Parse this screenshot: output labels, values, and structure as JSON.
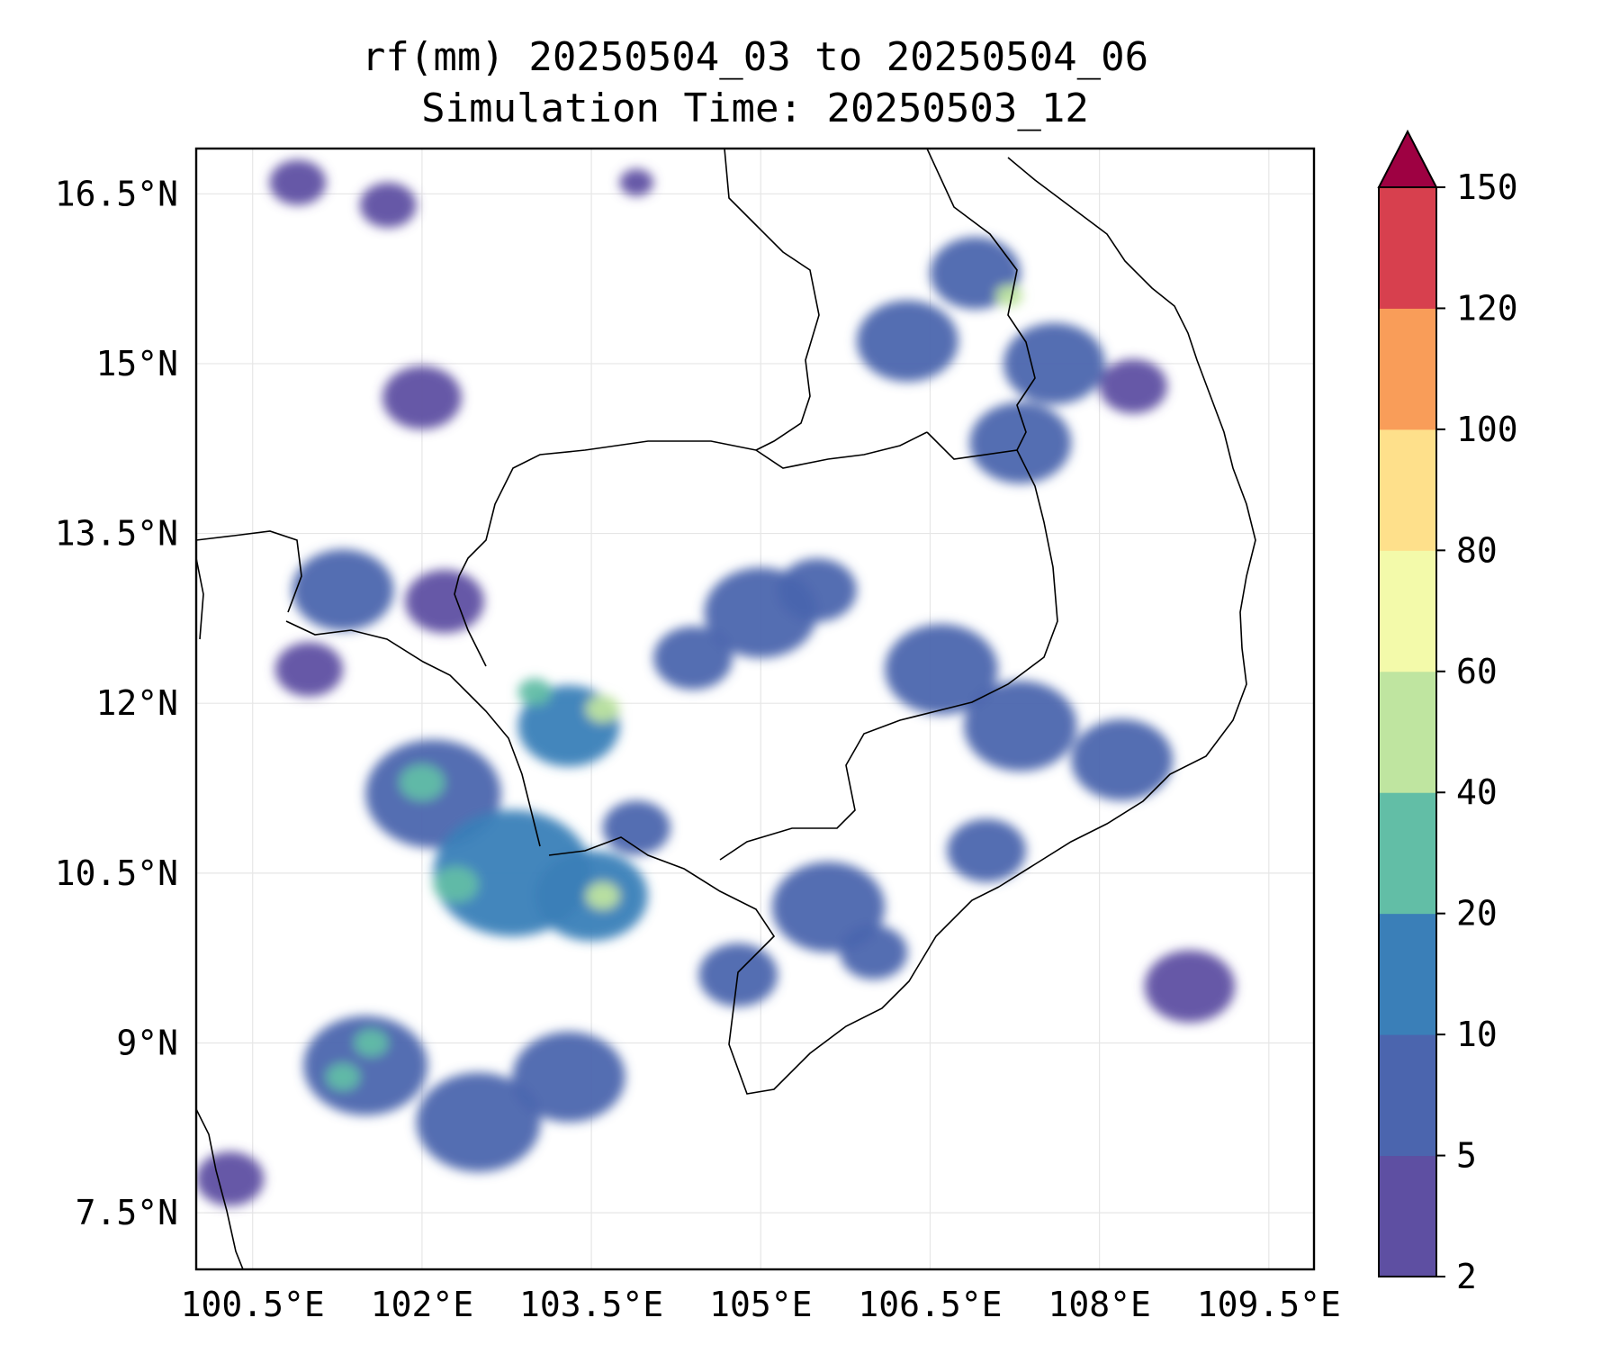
{
  "title": {
    "line1": "rf(mm) 20250504_03 to 20250504_06",
    "line2": "Simulation Time: 20250503_12"
  },
  "map": {
    "lon_range": [
      100.0,
      109.9
    ],
    "lat_range": [
      7.0,
      16.9
    ],
    "lon_ticks": [
      {
        "value": 100.5,
        "label": "100.5°E"
      },
      {
        "value": 102.0,
        "label": "102°E"
      },
      {
        "value": 103.5,
        "label": "103.5°E"
      },
      {
        "value": 105.0,
        "label": "105°E"
      },
      {
        "value": 106.5,
        "label": "106.5°E"
      },
      {
        "value": 108.0,
        "label": "108°E"
      },
      {
        "value": 109.5,
        "label": "109.5°E"
      }
    ],
    "lat_ticks": [
      {
        "value": 16.5,
        "label": "16.5°N"
      },
      {
        "value": 15.0,
        "label": "15°N"
      },
      {
        "value": 13.5,
        "label": "13.5°N"
      },
      {
        "value": 12.0,
        "label": "12°N"
      },
      {
        "value": 10.5,
        "label": "10.5°N"
      },
      {
        "value": 9.0,
        "label": "9°N"
      },
      {
        "value": 7.5,
        "label": "7.5°N"
      }
    ],
    "grid": true,
    "coastline_color": "#000000",
    "rain_cells": [
      {
        "lon": 100.9,
        "lat": 16.6,
        "r": 0.25,
        "v": 3
      },
      {
        "lon": 101.7,
        "lat": 16.4,
        "r": 0.25,
        "v": 3
      },
      {
        "lon": 102.0,
        "lat": 14.7,
        "r": 0.35,
        "v": 4
      },
      {
        "lon": 103.9,
        "lat": 16.6,
        "r": 0.15,
        "v": 3
      },
      {
        "lon": 101.3,
        "lat": 13.0,
        "r": 0.45,
        "v": 6
      },
      {
        "lon": 102.2,
        "lat": 12.9,
        "r": 0.35,
        "v": 4
      },
      {
        "lon": 101.0,
        "lat": 12.3,
        "r": 0.3,
        "v": 4
      },
      {
        "lon": 102.1,
        "lat": 11.2,
        "r": 0.6,
        "v": 8
      },
      {
        "lon": 102.0,
        "lat": 11.3,
        "r": 0.2,
        "v": 30
      },
      {
        "lon": 102.8,
        "lat": 10.5,
        "r": 0.7,
        "v": 12
      },
      {
        "lon": 102.3,
        "lat": 10.4,
        "r": 0.2,
        "v": 30
      },
      {
        "lon": 103.5,
        "lat": 10.3,
        "r": 0.5,
        "v": 14
      },
      {
        "lon": 103.6,
        "lat": 10.3,
        "r": 0.15,
        "v": 45
      },
      {
        "lon": 103.3,
        "lat": 11.8,
        "r": 0.45,
        "v": 10
      },
      {
        "lon": 103.6,
        "lat": 11.95,
        "r": 0.15,
        "v": 55
      },
      {
        "lon": 103.0,
        "lat": 12.1,
        "r": 0.15,
        "v": 30
      },
      {
        "lon": 103.9,
        "lat": 10.9,
        "r": 0.3,
        "v": 8
      },
      {
        "lon": 104.4,
        "lat": 12.4,
        "r": 0.35,
        "v": 5
      },
      {
        "lon": 105.0,
        "lat": 12.8,
        "r": 0.5,
        "v": 6
      },
      {
        "lon": 105.5,
        "lat": 13.0,
        "r": 0.35,
        "v": 5
      },
      {
        "lon": 106.6,
        "lat": 12.3,
        "r": 0.5,
        "v": 5
      },
      {
        "lon": 107.3,
        "lat": 11.8,
        "r": 0.5,
        "v": 5
      },
      {
        "lon": 108.2,
        "lat": 11.5,
        "r": 0.45,
        "v": 5
      },
      {
        "lon": 107.0,
        "lat": 10.7,
        "r": 0.35,
        "v": 5
      },
      {
        "lon": 105.6,
        "lat": 10.2,
        "r": 0.5,
        "v": 6
      },
      {
        "lon": 104.8,
        "lat": 9.6,
        "r": 0.35,
        "v": 5
      },
      {
        "lon": 101.5,
        "lat": 8.8,
        "r": 0.55,
        "v": 6
      },
      {
        "lon": 101.3,
        "lat": 8.7,
        "r": 0.15,
        "v": 30
      },
      {
        "lon": 101.55,
        "lat": 9.0,
        "r": 0.15,
        "v": 30
      },
      {
        "lon": 102.5,
        "lat": 8.3,
        "r": 0.55,
        "v": 5
      },
      {
        "lon": 103.3,
        "lat": 8.7,
        "r": 0.5,
        "v": 5
      },
      {
        "lon": 100.3,
        "lat": 7.8,
        "r": 0.3,
        "v": 4
      },
      {
        "lon": 106.3,
        "lat": 15.2,
        "r": 0.45,
        "v": 8
      },
      {
        "lon": 106.9,
        "lat": 15.8,
        "r": 0.4,
        "v": 6
      },
      {
        "lon": 107.2,
        "lat": 15.6,
        "r": 0.12,
        "v": 55
      },
      {
        "lon": 107.6,
        "lat": 15.0,
        "r": 0.45,
        "v": 5
      },
      {
        "lon": 107.3,
        "lat": 14.3,
        "r": 0.45,
        "v": 5
      },
      {
        "lon": 108.3,
        "lat": 14.8,
        "r": 0.3,
        "v": 4
      },
      {
        "lon": 108.8,
        "lat": 9.5,
        "r": 0.4,
        "v": 4
      },
      {
        "lon": 106.0,
        "lat": 9.8,
        "r": 0.3,
        "v": 5
      }
    ]
  },
  "colorbar": {
    "levels": [
      2,
      5,
      10,
      20,
      40,
      60,
      80,
      100,
      120,
      150
    ],
    "labels": [
      "2",
      "5",
      "10",
      "20",
      "40",
      "60",
      "80",
      "100",
      "120",
      "150"
    ],
    "colors": [
      "#5e4fa2",
      "#4b65ae",
      "#3a7fb8",
      "#62bea6",
      "#bfe5a0",
      "#f3faaa",
      "#fee08b",
      "#f99d59",
      "#d7404e",
      "#9e0142"
    ],
    "extend": "max"
  }
}
